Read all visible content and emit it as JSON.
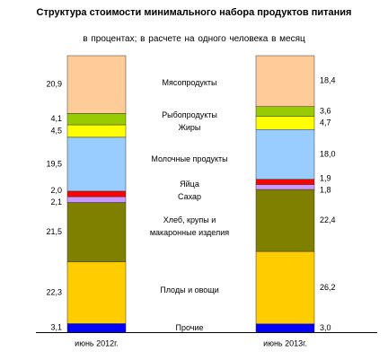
{
  "chart_data": {
    "type": "stacked-bar",
    "title": "Структура стоимости минимального набора продуктов питания",
    "subtitle": "в процентах;  в  расчете  на одного  человека в месяц",
    "categories": [
      "июнь 2012г.",
      "июнь 2013г."
    ],
    "series": [
      {
        "name": "Прочие",
        "color": "#0000ff",
        "values": [
          3.1,
          3.0
        ],
        "value_labels": [
          "3,1",
          "3,0"
        ]
      },
      {
        "name": "Плоды и овощи",
        "color": "#ffcc00",
        "values": [
          22.3,
          26.2
        ],
        "value_labels": [
          "22,3",
          "26,2"
        ]
      },
      {
        "name": "Хлеб, крупы и макаронные изделия",
        "color": "#808000",
        "values": [
          21.5,
          22.4
        ],
        "value_labels": [
          "21,5",
          "22,4"
        ]
      },
      {
        "name": "Сахар",
        "color": "#cc99ff",
        "values": [
          2.1,
          1.8
        ],
        "value_labels": [
          "2,1",
          "1,8"
        ]
      },
      {
        "name": "Яйца",
        "color": "#ff0000",
        "values": [
          2.0,
          1.9
        ],
        "value_labels": [
          "2,0",
          "1,9"
        ]
      },
      {
        "name": "Молочные продукты",
        "color": "#99ccff",
        "values": [
          19.5,
          18.0
        ],
        "value_labels": [
          "19,5",
          "18,0"
        ]
      },
      {
        "name": "Жиры",
        "color": "#ffff00",
        "values": [
          4.5,
          4.7
        ],
        "value_labels": [
          "4,5",
          "4,7"
        ]
      },
      {
        "name": "Рыбопродукты",
        "color": "#99cc00",
        "values": [
          4.1,
          3.6
        ],
        "value_labels": [
          "4,1",
          "3,6"
        ]
      },
      {
        "name": "Мясопродукты",
        "color": "#ffcc99",
        "values": [
          20.9,
          18.4
        ],
        "value_labels": [
          "20,9",
          "18,4"
        ]
      }
    ]
  }
}
